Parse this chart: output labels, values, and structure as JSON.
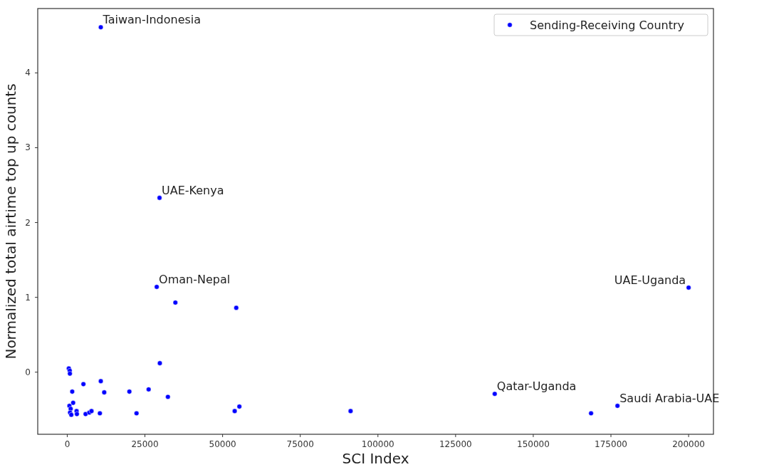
{
  "chart_data": {
    "type": "scatter",
    "xlabel": "SCI Index",
    "ylabel": "Normalized total airtime top up counts",
    "xlim": [
      -9500,
      208000
    ],
    "ylim": [
      -0.83,
      4.86
    ],
    "xticks": [
      0,
      25000,
      50000,
      75000,
      100000,
      125000,
      150000,
      175000,
      200000
    ],
    "yticks": [
      0,
      1,
      2,
      3,
      4
    ],
    "grid": false,
    "legend": "top right",
    "marker": "circle",
    "series": [
      {
        "name": "Sending-Receiving Country",
        "color": "#0000ff",
        "x": [
          10800,
          29700,
          28800,
          200000,
          137600,
          177100,
          500,
          800,
          850,
          1600,
          5200,
          10800,
          11900,
          20000,
          26200,
          29800,
          32400,
          1900,
          700,
          1100,
          900,
          1300,
          3000,
          3100,
          5900,
          7100,
          7800,
          10100,
          10500,
          22300,
          53900,
          55400,
          34800,
          54400,
          168600,
          91200
        ],
        "values": [
          4.61,
          2.33,
          1.14,
          1.13,
          -0.29,
          -0.45,
          0.05,
          0.02,
          -0.02,
          -0.26,
          -0.16,
          -0.12,
          -0.27,
          -0.26,
          -0.23,
          0.12,
          -0.33,
          -0.41,
          -0.45,
          -0.49,
          -0.54,
          -0.57,
          -0.52,
          -0.56,
          -0.56,
          -0.54,
          -0.52,
          null,
          -0.55,
          -0.55,
          -0.52,
          -0.46,
          0.93,
          0.86,
          -0.55,
          -0.52
        ]
      }
    ],
    "annotations": [
      {
        "text": "Taiwan-Indonesia",
        "x": 10800,
        "y": 4.61
      },
      {
        "text": "UAE-Kenya",
        "x": 29700,
        "y": 2.33
      },
      {
        "text": "Oman-Nepal",
        "x": 28800,
        "y": 1.14
      },
      {
        "text": "UAE-Uganda",
        "x": 200000,
        "y": 1.13
      },
      {
        "text": "Qatar-Uganda",
        "x": 137600,
        "y": -0.29
      },
      {
        "text": "Saudi Arabia-UAE",
        "x": 177100,
        "y": -0.45
      }
    ]
  }
}
